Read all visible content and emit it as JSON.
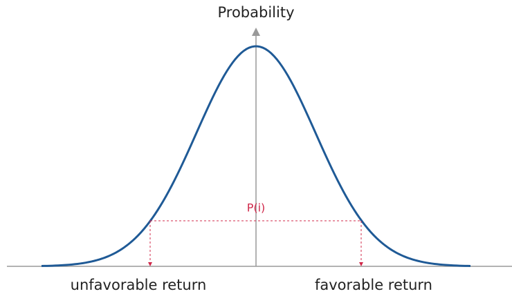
{
  "axis_label": "Probability",
  "marker_label": "P(i)",
  "left_label": "unfavorable return",
  "right_label": "favorable return"
}
